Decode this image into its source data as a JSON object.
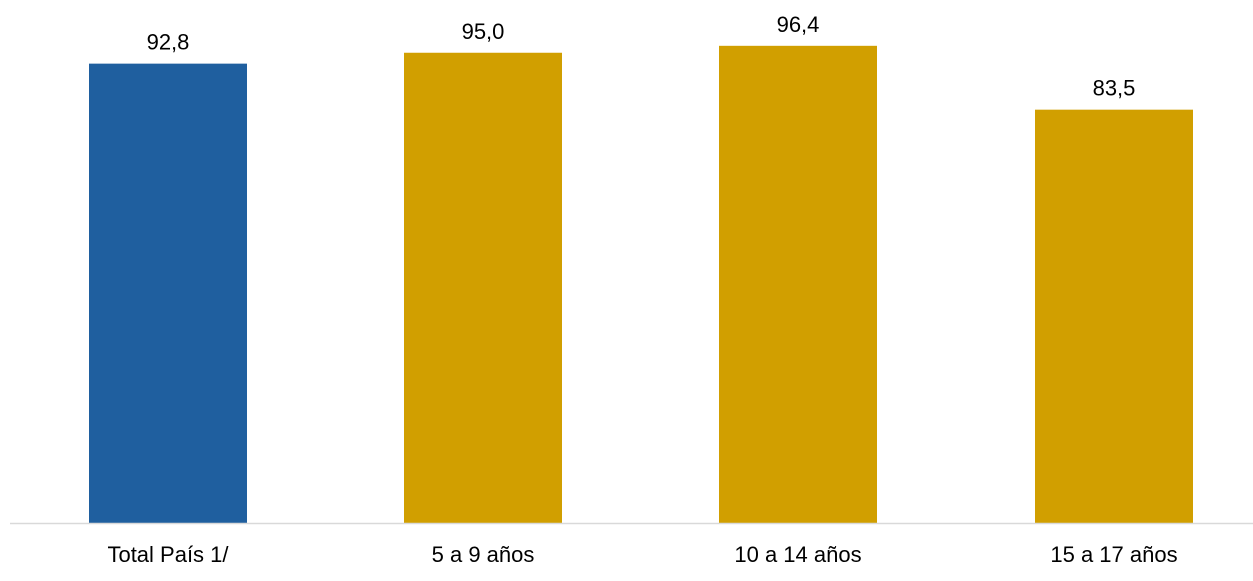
{
  "chart_data": {
    "type": "bar",
    "title": "",
    "xlabel": "",
    "ylabel": "",
    "categories": [
      "Total País 1/",
      "5 a 9 años",
      "10 a 14 años",
      "15 a 17 años"
    ],
    "values": [
      92.8,
      95.0,
      96.4,
      83.5
    ],
    "value_labels": [
      "92,8",
      "95,0",
      "96,4",
      "83,5"
    ],
    "colors": [
      "#1F5F9F",
      "#D19F00",
      "#D19F00",
      "#D19F00"
    ],
    "axis_color": "#D9D9D9",
    "ylim": [
      0,
      100
    ],
    "grid": false,
    "legend": "none"
  }
}
